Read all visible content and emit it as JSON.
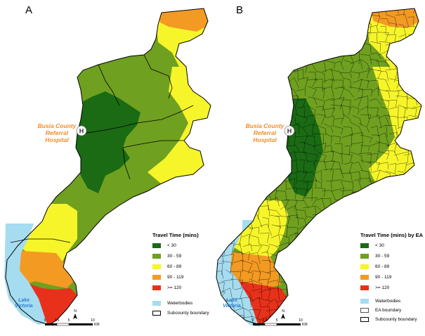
{
  "panels": {
    "left": {
      "letter": "A",
      "hospital_label": [
        "Busia County",
        "Referral Hospital"
      ],
      "hospital_marker": "H",
      "lake_label": [
        "Lake",
        "Victoria"
      ],
      "legend_title": "Travel Time (mins)",
      "legend_items": [
        {
          "label": "< 30",
          "color": "#1a6b14"
        },
        {
          "label": "30 - 59",
          "color": "#6fa020"
        },
        {
          "label": "60 - 89",
          "color": "#f6f52a"
        },
        {
          "label": "90 - 119",
          "color": "#f39a23"
        },
        {
          "label": ">= 120",
          "color": "#e8311a"
        }
      ],
      "legend_extra": [
        {
          "label": "Waterbodies",
          "color": "#a6dcf0"
        },
        {
          "label": "Subcounty boundary"
        }
      ],
      "scale": {
        "ticks": [
          "0",
          "2.5",
          "5",
          "10"
        ],
        "unit": "KM"
      },
      "north": "N"
    },
    "right": {
      "letter": "B",
      "hospital_label": [
        "Busia County",
        "Referral Hospital"
      ],
      "hospital_marker": "H",
      "lake_label": [
        "Lake",
        "Victoria"
      ],
      "legend_title": "Travel Time (mins) by EA",
      "legend_items": [
        {
          "label": "< 30",
          "color": "#1a6b14"
        },
        {
          "label": "30 - 59",
          "color": "#6fa020"
        },
        {
          "label": "60 - 89",
          "color": "#f6f52a"
        },
        {
          "label": "90 - 119",
          "color": "#f39a23"
        },
        {
          "label": ">= 120",
          "color": "#e8311a"
        }
      ],
      "legend_extra": [
        {
          "label": "Waterbodies",
          "color": "#a6dcf0"
        },
        {
          "label": "EA boundary"
        },
        {
          "label": "Subcounty boundary"
        }
      ],
      "scale": {
        "ticks": [
          "0",
          "2.5",
          "5",
          "10"
        ],
        "unit": "KM"
      },
      "north": "N"
    }
  }
}
